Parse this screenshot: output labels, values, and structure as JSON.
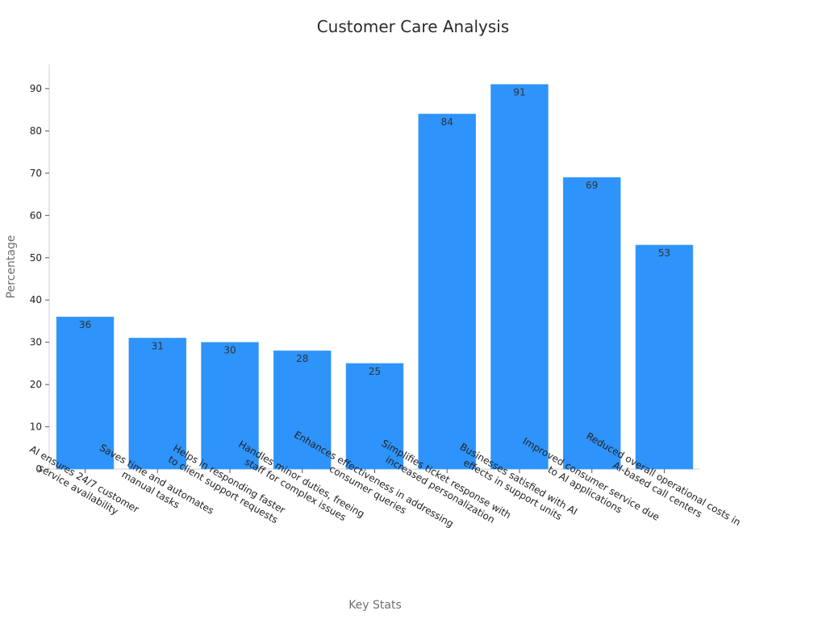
{
  "chart_data": {
    "type": "bar",
    "title": "Customer Care Analysis",
    "xlabel": "Key Stats",
    "ylabel": "Percentage",
    "ylim": [
      0,
      96
    ],
    "yticks": [
      0,
      10,
      20,
      30,
      40,
      50,
      60,
      70,
      80,
      90
    ],
    "grid": false,
    "legend": "none",
    "bar_color": "#2e93fa",
    "categories": [
      "AI ensures 24/7 customer service availability",
      "Saves time and automates manual tasks",
      "Helps in responding faster to client support requests",
      "Handles minor duties, freeing staff for complex issues",
      "Enhances effectiveness in addressing consumer queries",
      "Simplifies ticket response with increased personalization",
      "Businesses satisfied with AI effects in support units",
      "Improved consumer service due to AI applications",
      "Reduced overall operational costs in AI-based call centers"
    ],
    "category_lines": [
      [
        "AI ensures 24/7 customer",
        "service availability"
      ],
      [
        "Saves time and automates",
        "manual tasks"
      ],
      [
        "Helps in responding faster",
        "to client support requests"
      ],
      [
        "Handles minor duties, freeing",
        "staff for complex issues"
      ],
      [
        "Enhances effectiveness in addressing",
        "consumer queries"
      ],
      [
        "Simplifies ticket response with",
        "increased personalization"
      ],
      [
        "Businesses satisfied with AI",
        "effects in support units"
      ],
      [
        "Improved consumer service due",
        "to AI applications"
      ],
      [
        "Reduced overall operational costs in",
        "AI-based call centers"
      ]
    ],
    "values": [
      36,
      31,
      30,
      28,
      25,
      84,
      91,
      69,
      53
    ]
  }
}
